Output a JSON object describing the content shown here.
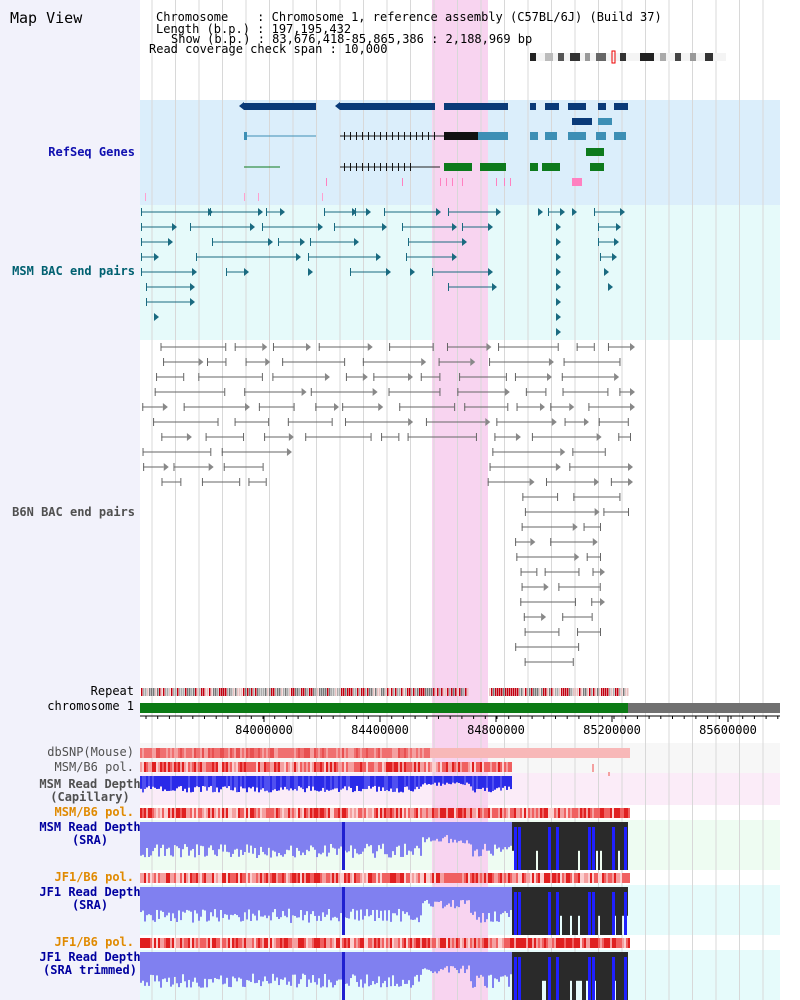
{
  "title": "Map View",
  "header": {
    "chrom": "Chromosome    : Chromosome 1, reference assembly (C57BL/6J) (Build 37)",
    "length": "Length (b.p.) : 197,195,432",
    "show": "Show (b.p.) : 83,676,418-85,865,386 : 2,188,969 bp",
    "span": "Read coverage check span : 10,000"
  },
  "tracks": {
    "refseq": "RefSeq Genes",
    "msm_bac": "MSM BAC end pairs",
    "b6n_bac": "B6N BAC end pairs",
    "repeat": "Repeat",
    "chromosome": "chromosome 1",
    "dbsnp": "dbSNP(Mouse)",
    "msm_b6_pol": "MSM/B6 pol.",
    "msm_depth_cap": "MSM Read Depth\n(Capillary)",
    "msm_b6_pol2": "MSM/B6 pol.",
    "msm_depth_sra": "MSM Read Depth\n(SRA)",
    "jf1_b6_pol": "JF1/B6 pol.",
    "jf1_depth_sra": "JF1 Read Depth\n(SRA)",
    "jf1_b6_pol2": "JF1/B6 pol.",
    "jf1_depth_trim": "JF1 Read Depth\n(SRA trimmed)"
  },
  "axis": {
    "ticks": [
      "84000000",
      "84400000",
      "84800000",
      "85200000",
      "85600000"
    ]
  },
  "colors": {
    "refseq_label": "#1010b0",
    "msm_label": "#006070",
    "b6n_label": "#505050",
    "pol_label": "#e08a00",
    "depth_label": "#0000a0",
    "highlight": "#f8d4f0"
  }
}
